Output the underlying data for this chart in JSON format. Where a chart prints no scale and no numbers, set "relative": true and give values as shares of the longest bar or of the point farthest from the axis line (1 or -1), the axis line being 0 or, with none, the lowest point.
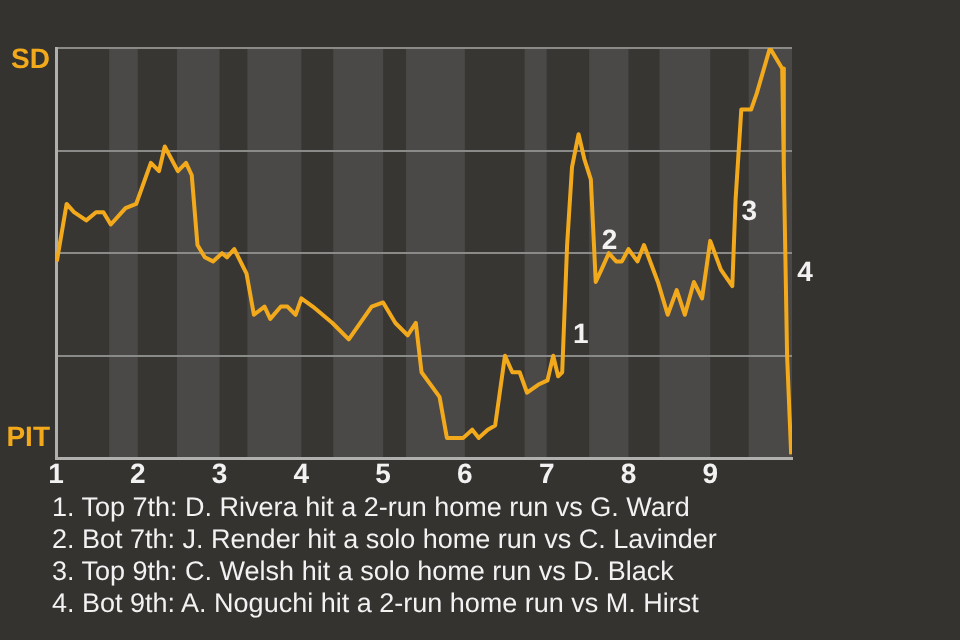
{
  "chart_data": {
    "type": "line",
    "x": [
      1.01,
      1.13,
      1.22,
      1.37,
      1.49,
      1.58,
      1.67,
      1.85,
      1.98,
      2.16,
      2.26,
      2.33,
      2.49,
      2.59,
      2.66,
      2.73,
      2.82,
      2.92,
      3.03,
      3.09,
      3.18,
      3.33,
      3.42,
      3.55,
      3.62,
      3.75,
      3.83,
      3.93,
      4.0,
      4.14,
      4.38,
      4.58,
      4.86,
      5.0,
      5.15,
      5.3,
      5.4,
      5.47,
      5.69,
      5.78,
      5.98,
      6.09,
      6.17,
      6.28,
      6.37,
      6.49,
      6.58,
      6.67,
      6.76,
      6.9,
      7.01,
      7.08,
      7.14,
      7.19,
      7.25,
      7.31,
      7.39,
      7.46,
      7.54,
      7.6,
      7.67,
      7.76,
      7.85,
      7.92,
      8.0,
      8.11,
      8.19,
      8.36,
      8.48,
      8.59,
      8.69,
      8.8,
      8.9,
      9.0,
      9.13,
      9.27,
      9.31,
      9.38,
      9.5,
      9.57,
      9.73,
      9.88,
      9.9,
      9.94,
      9.99
    ],
    "series": [
      {
        "color": "#f2aa1c",
        "values": [
          0.48,
          0.62,
          0.6,
          0.58,
          0.6,
          0.6,
          0.57,
          0.61,
          0.62,
          0.72,
          0.7,
          0.76,
          0.7,
          0.72,
          0.69,
          0.52,
          0.49,
          0.48,
          0.5,
          0.49,
          0.51,
          0.45,
          0.35,
          0.37,
          0.34,
          0.37,
          0.37,
          0.35,
          0.39,
          0.37,
          0.33,
          0.29,
          0.37,
          0.38,
          0.33,
          0.3,
          0.33,
          0.21,
          0.15,
          0.05,
          0.05,
          0.07,
          0.05,
          0.07,
          0.08,
          0.25,
          0.21,
          0.21,
          0.16,
          0.18,
          0.19,
          0.25,
          0.2,
          0.21,
          0.52,
          0.71,
          0.79,
          0.73,
          0.68,
          0.43,
          0.46,
          0.5,
          0.48,
          0.48,
          0.51,
          0.48,
          0.52,
          0.43,
          0.35,
          0.41,
          0.35,
          0.43,
          0.39,
          0.53,
          0.46,
          0.42,
          0.63,
          0.85,
          0.85,
          0.89,
          1,
          0.95,
          0.71,
          0.25,
          0.01
        ]
      }
    ],
    "relative": true,
    "xlim": [
      1,
      10
    ],
    "xticks": [
      1,
      2,
      3,
      4,
      5,
      6,
      7,
      8,
      9
    ],
    "grid": "y",
    "legend": false,
    "line_style": "solid",
    "bands": [
      {
        "axis": "x",
        "from": 1.65,
        "to": 2,
        "color": "#4a4947"
      },
      {
        "axis": "x",
        "from": 2.48,
        "to": 3,
        "color": "#4a4947"
      },
      {
        "axis": "x",
        "from": 3.34,
        "to": 4,
        "color": "#4a4947"
      },
      {
        "axis": "x",
        "from": 4.39,
        "to": 5,
        "color": "#4a4947"
      },
      {
        "axis": "x",
        "from": 5.28,
        "to": 6,
        "color": "#4a4947"
      },
      {
        "axis": "x",
        "from": 6.73,
        "to": 7,
        "color": "#4a4947"
      },
      {
        "axis": "x",
        "from": 7.52,
        "to": 8,
        "color": "#4a4947"
      },
      {
        "axis": "x",
        "from": 8.38,
        "to": 9,
        "color": "#4a4947"
      },
      {
        "axis": "x",
        "from": 9.47,
        "to": 10,
        "color": "#4a4947"
      }
    ],
    "annotations": [
      "SD",
      "PIT",
      {
        "text": "1",
        "x": 7.25,
        "y": 0.3
      },
      {
        "text": "2",
        "x": 7.6,
        "y": 0.53
      },
      {
        "text": "3",
        "x": 9.31,
        "y": 0.6
      },
      {
        "text": "4",
        "x": 9.99,
        "y": 0.45
      },
      "1. Top 7th: D. Rivera hit a 2-run home run vs G. Ward",
      "2. Bot 7th: J. Render hit a solo home run vs C. Lavinder",
      "3. Top 9th: C. Welsh hit a solo home run vs D. Black",
      "4. Bot 9th: A. Noguchi hit a 2-run home run vs M. Hirst"
    ]
  }
}
